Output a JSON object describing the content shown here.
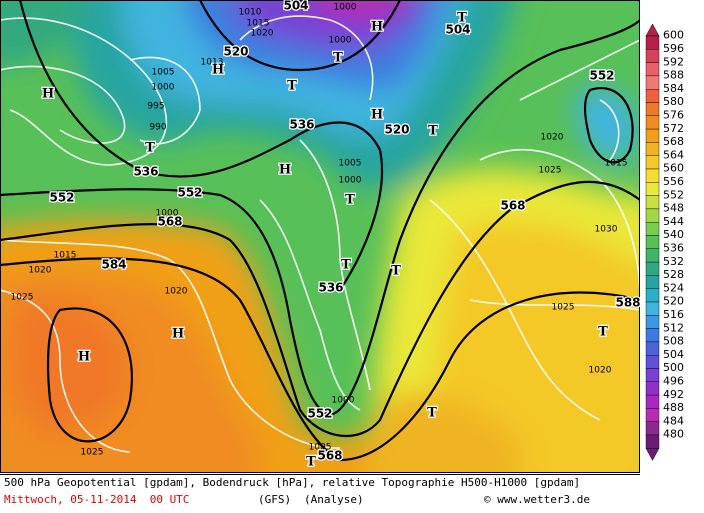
{
  "map": {
    "labels": [
      "504",
      "1010",
      "1015",
      "1020",
      "1000",
      "H",
      "T",
      "504",
      "520",
      "1000",
      "T",
      "H",
      "1013",
      "1005",
      "1000",
      "995",
      "990",
      "T",
      "H",
      "T",
      "536",
      "H",
      "520",
      "T",
      "552",
      "1020",
      "H",
      "1005",
      "1000",
      "T",
      "536",
      "552",
      "552",
      "568",
      "1000",
      "1015",
      "1020",
      "584",
      "1025",
      "1020",
      "H",
      "H",
      "1025",
      "568",
      "1030",
      "1025",
      "T",
      "536",
      "T",
      "1025",
      "588",
      "T",
      "1020",
      "552",
      "1000",
      "T",
      "1005",
      "568",
      "T",
      "1015"
    ]
  },
  "legend": {
    "values": [
      600,
      596,
      592,
      588,
      584,
      580,
      576,
      572,
      568,
      564,
      560,
      556,
      552,
      548,
      544,
      540,
      536,
      532,
      528,
      524,
      520,
      516,
      512,
      508,
      504,
      500,
      496,
      492,
      488,
      484,
      480
    ],
    "colors": [
      "#b8204c",
      "#d8405c",
      "#e8606c",
      "#f07a72",
      "#f06040",
      "#f07828",
      "#f08c20",
      "#f0a018",
      "#f0b420",
      "#f4c828",
      "#f4dc30",
      "#eae838",
      "#c8e040",
      "#a0d848",
      "#78cc50",
      "#58c058",
      "#40b468",
      "#30a880",
      "#28a4a0",
      "#28b0c8",
      "#40b4e0",
      "#3c98e0",
      "#3c7ce0",
      "#4c64d8",
      "#6050d8",
      "#7840d4",
      "#9030c8",
      "#a828c0",
      "#b82cb4",
      "#8c2890",
      "#6c1c78"
    ]
  },
  "footer": {
    "line1": "500 hPa Geopotential [gpdam], Bodendruck [hPa], relative Topographie H500-H1000 [gpdam]",
    "date": "Mittwoch, 05-11-2014  00 UTC",
    "model": "(GFS)",
    "run": "(Analyse)",
    "credit": "© www.wetter3.de"
  }
}
